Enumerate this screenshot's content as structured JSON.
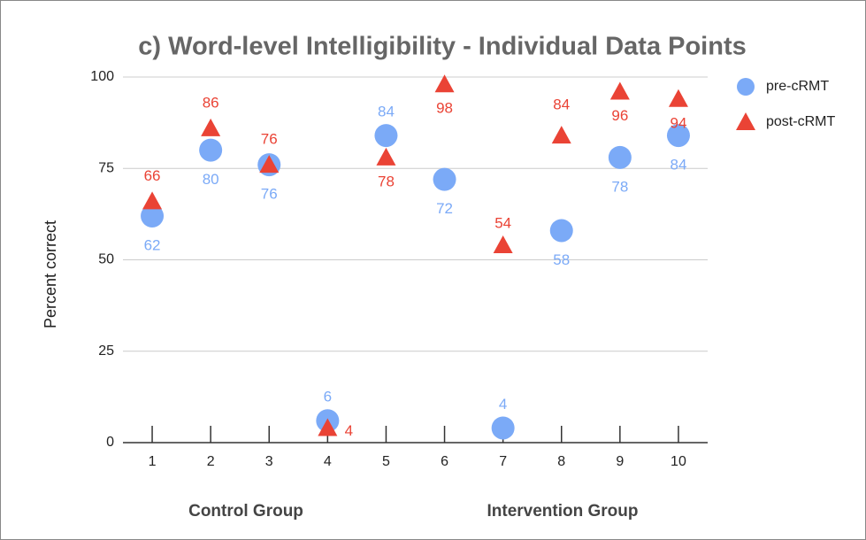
{
  "chart_data": {
    "type": "scatter",
    "title": "c) Word-level Intelligibility - Individual Data Points",
    "y_label": "Percent correct",
    "categories": [
      "1",
      "2",
      "3",
      "4",
      "5",
      "6",
      "7",
      "8",
      "9",
      "10"
    ],
    "series": [
      {
        "name": "pre-cRMT",
        "color": "#7baaf7",
        "marker": "circle",
        "values": [
          62,
          80,
          76,
          6,
          84,
          72,
          4,
          58,
          78,
          84
        ]
      },
      {
        "name": "post-cRMT",
        "color": "#ea4335",
        "marker": "triangle",
        "values": [
          66,
          86,
          76,
          4,
          78,
          98,
          54,
          84,
          96,
          94
        ]
      }
    ],
    "ylim": [
      0,
      100
    ],
    "yticks": [
      0,
      25,
      50,
      75,
      100
    ],
    "grid": true,
    "legend": "right",
    "annotations": [
      "Control Group",
      "Intervention Group"
    ]
  }
}
